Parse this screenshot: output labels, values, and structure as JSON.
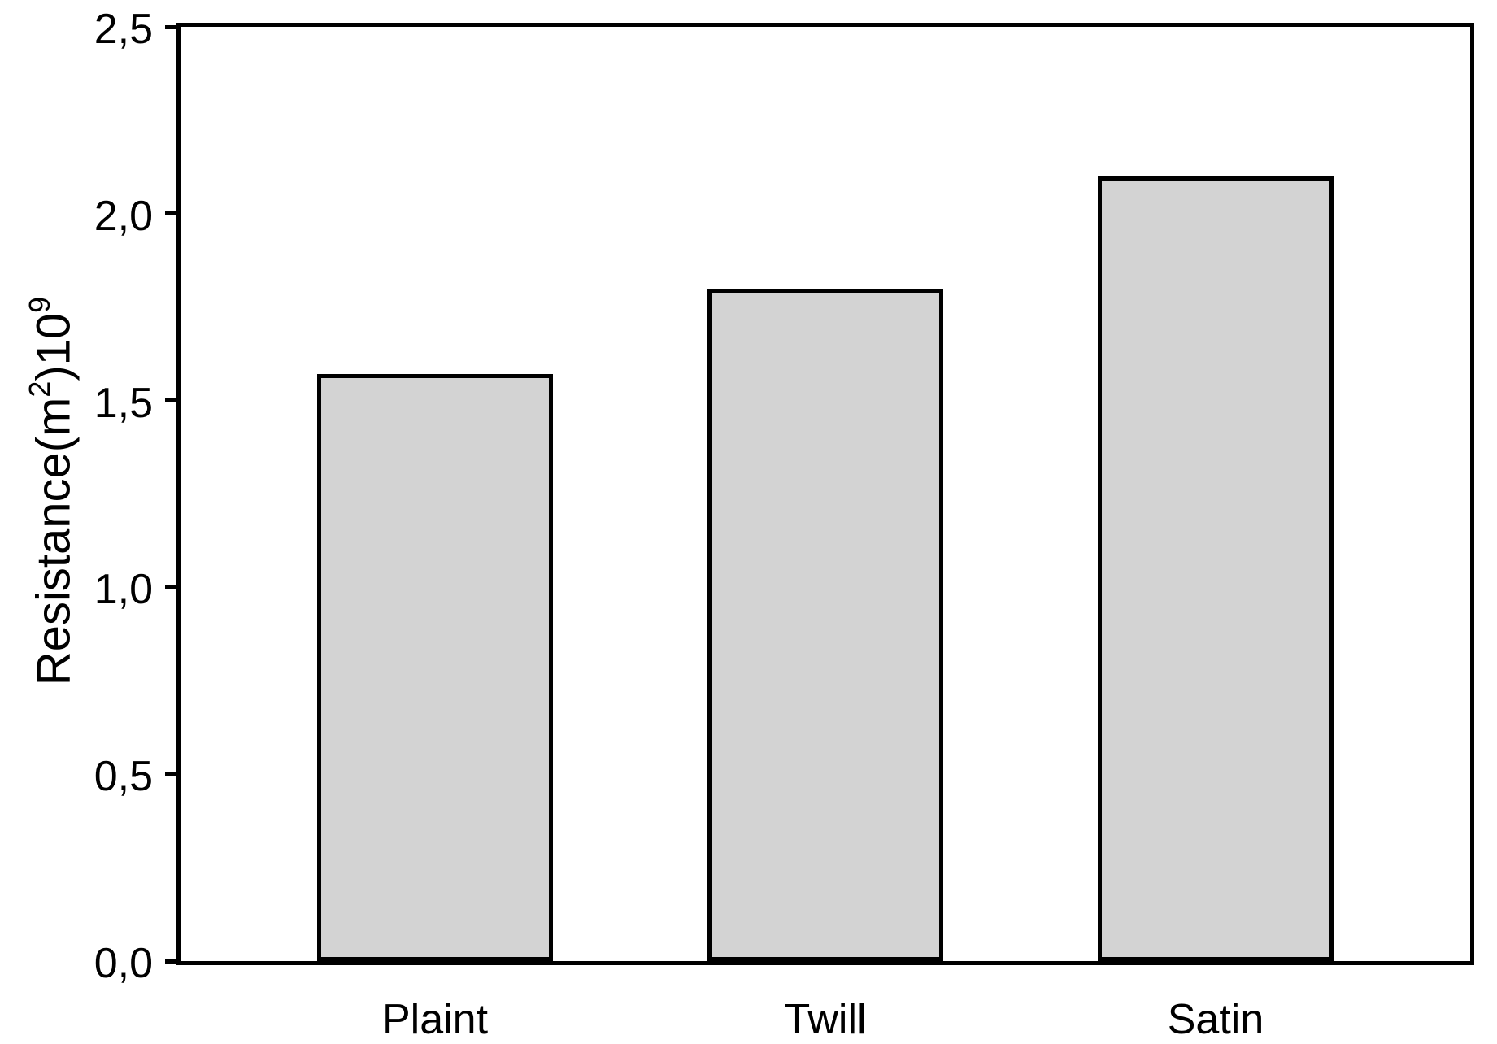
{
  "chart_data": {
    "type": "bar",
    "title": "",
    "xlabel": "",
    "ylabel": "Resistance(m^2)10^9",
    "ylabel_parts": {
      "pre": "Resistance(m",
      "sup1": "2",
      "mid": ")10",
      "sup2": "9"
    },
    "categories": [
      "Plaint",
      "Twill",
      "Satin"
    ],
    "values": [
      1.57,
      1.8,
      2.1
    ],
    "ylim": [
      0,
      2.5
    ],
    "yticks": [
      {
        "value": 0.0,
        "label": "0,0"
      },
      {
        "value": 0.5,
        "label": "0,5"
      },
      {
        "value": 1.0,
        "label": "1,0"
      },
      {
        "value": 1.5,
        "label": "1,5"
      },
      {
        "value": 2.0,
        "label": "2,0"
      },
      {
        "value": 2.5,
        "label": "2,5"
      }
    ],
    "grid": false,
    "legend_position": "none",
    "colors": {
      "bar_fill": "#d3d3d3",
      "bar_border": "#000000",
      "axis": "#000000",
      "background": "#ffffff",
      "text": "#000000"
    }
  }
}
